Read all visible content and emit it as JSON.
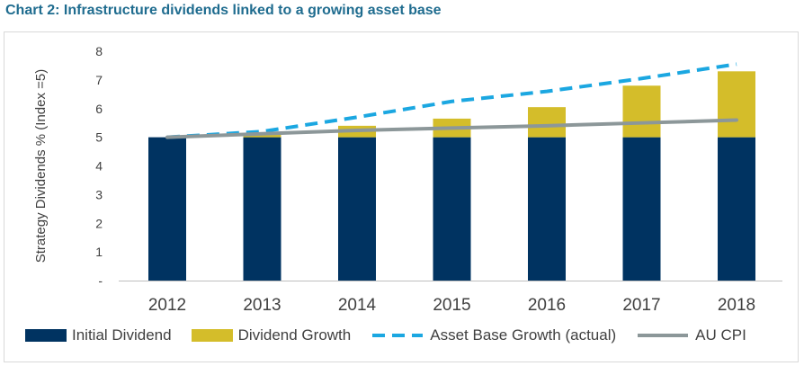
{
  "title": "Chart 2: Infrastructure dividends linked to a growing asset base",
  "colors": {
    "title": "#1f6c8f",
    "initial_dividend": "#003361",
    "dividend_growth": "#d4bd2a",
    "asset_base_growth": "#1ba7e1",
    "au_cpi": "#8c9799",
    "axis": "#bfbfbf"
  },
  "chart_data": {
    "type": "bar",
    "stacked": true,
    "categories": [
      "2012",
      "2013",
      "2014",
      "2015",
      "2016",
      "2017",
      "2018"
    ],
    "series": [
      {
        "name": "Initial Dividend",
        "type": "bar",
        "values": [
          5,
          5,
          5,
          5,
          5,
          5,
          5
        ]
      },
      {
        "name": "Dividend Growth",
        "type": "bar",
        "values": [
          0,
          0.1,
          0.4,
          0.65,
          1.05,
          1.8,
          2.3
        ]
      },
      {
        "name": "Asset Base Growth (actual)",
        "type": "line",
        "style": "dashed",
        "values": [
          5.0,
          5.2,
          5.7,
          6.25,
          6.6,
          7.05,
          7.55
        ]
      },
      {
        "name": "AU CPI",
        "type": "line",
        "style": "solid",
        "values": [
          5.0,
          5.12,
          5.24,
          5.32,
          5.4,
          5.5,
          5.6
        ]
      }
    ],
    "ylabel": "Strategy Dividends % (Index =5)",
    "xlabel": "",
    "ylim": [
      0,
      8
    ],
    "yticks": [
      "-",
      "1",
      "2",
      "3",
      "4",
      "5",
      "6",
      "7",
      "8"
    ],
    "grid": false,
    "legend_position": "bottom"
  }
}
